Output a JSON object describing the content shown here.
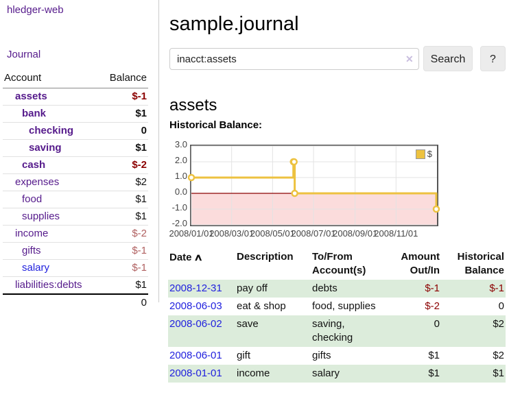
{
  "colors": {
    "link_purple": "#551a8b",
    "link_blue": "#2121de",
    "negative_strong": "#8b0000",
    "negative_muted": "#b06060",
    "stripe_green": "#dcecdb",
    "chart_line": "#edc240",
    "chart_negative_fill": "#fbdcdc",
    "chart_zero_line": "#8b0000",
    "chart_grid": "#e3e3e3"
  },
  "icons": {
    "sort_up": "∧",
    "clear": "✕"
  },
  "sidebar": {
    "brand": "hledger-web",
    "journal_link": "Journal",
    "accounts": {
      "header_account": "Account",
      "header_balance": "Balance",
      "rows": [
        {
          "name": "assets",
          "indent": 0,
          "bold": true,
          "balance": "$-1",
          "balance_class": "neg-strong"
        },
        {
          "name": "bank",
          "indent": 1,
          "bold": true,
          "balance": "$1",
          "balance_class": ""
        },
        {
          "name": "checking",
          "indent": 2,
          "bold": true,
          "balance": "0",
          "balance_class": ""
        },
        {
          "name": "saving",
          "indent": 2,
          "bold": true,
          "balance": "$1",
          "balance_class": ""
        },
        {
          "name": "cash",
          "indent": 1,
          "bold": true,
          "balance": "$-2",
          "balance_class": "neg-strong"
        },
        {
          "name": "expenses",
          "indent": 0,
          "bold": false,
          "balance": "$2",
          "balance_class": ""
        },
        {
          "name": "food",
          "indent": 1,
          "bold": false,
          "balance": "$1",
          "balance_class": ""
        },
        {
          "name": "supplies",
          "indent": 1,
          "bold": false,
          "balance": "$1",
          "balance_class": ""
        },
        {
          "name": "income",
          "indent": 0,
          "bold": false,
          "balance": "$-2",
          "balance_class": "neg-muted"
        },
        {
          "name": "gifts",
          "indent": 1,
          "bold": false,
          "balance": "$-1",
          "balance_class": "neg-muted"
        },
        {
          "name": "salary",
          "indent": 1,
          "bold": false,
          "blue": true,
          "balance": "$-1",
          "balance_class": "neg-muted"
        },
        {
          "name": "liabilities:debts",
          "indent": 0,
          "bold": false,
          "balance": "$1",
          "balance_class": ""
        }
      ],
      "total": "0"
    }
  },
  "main": {
    "title": "sample.journal",
    "search": {
      "value": "inacct:assets",
      "button_label": "Search",
      "help_label": "?"
    },
    "account_heading": "assets",
    "section_label": "Historical Balance:"
  },
  "register": {
    "headers": {
      "date": "Date",
      "description": "Description",
      "accounts": "To/From Account(s)",
      "amount": "Amount Out/In",
      "balance": "Historical Balance"
    },
    "rows": [
      {
        "date": "2008-12-31",
        "description": "pay off",
        "accounts": "debts",
        "amount": "$-1",
        "amount_negative": true,
        "balance": "$-1",
        "balance_negative": true
      },
      {
        "date": "2008-06-03",
        "description": "eat & shop",
        "accounts": "food, supplies",
        "amount": "$-2",
        "amount_negative": true,
        "balance": "0",
        "balance_negative": false
      },
      {
        "date": "2008-06-02",
        "description": "save",
        "accounts": "saving, checking",
        "amount": "0",
        "amount_negative": false,
        "balance": "$2",
        "balance_negative": false
      },
      {
        "date": "2008-06-01",
        "description": "gift",
        "accounts": "gifts",
        "amount": "$1",
        "amount_negative": false,
        "balance": "$2",
        "balance_negative": false
      },
      {
        "date": "2008-01-01",
        "description": "income",
        "accounts": "salary",
        "amount": "$1",
        "amount_negative": false,
        "balance": "$1",
        "balance_negative": false
      }
    ]
  },
  "chart_data": {
    "type": "line",
    "step": true,
    "title": "Historical Balance:",
    "x_domain": [
      "2008-01-01",
      "2009-01-01"
    ],
    "ylim": [
      -2,
      3
    ],
    "grid": true,
    "negative_region": true,
    "legend_position": "top-right",
    "y_ticks": [
      {
        "label": "3.0",
        "value": 3
      },
      {
        "label": "2.0",
        "value": 2
      },
      {
        "label": "1.0",
        "value": 1
      },
      {
        "label": "0.0",
        "value": 0
      },
      {
        "label": "-1.0",
        "value": -1
      },
      {
        "label": "-2.0",
        "value": -2
      }
    ],
    "x_ticks": [
      {
        "label": "2008/01/01",
        "date": "2008-01-01"
      },
      {
        "label": "2008/03/01",
        "date": "2008-03-01"
      },
      {
        "label": "2008/05/01",
        "date": "2008-05-01"
      },
      {
        "label": "2008/07/01",
        "date": "2008-07-01"
      },
      {
        "label": "2008/09/01",
        "date": "2008-09-01"
      },
      {
        "label": "2008/11/01",
        "date": "2008-11-01"
      }
    ],
    "series": [
      {
        "name": "$",
        "color": "#edc240",
        "points": [
          {
            "date": "2008-01-01",
            "value": 1
          },
          {
            "date": "2008-06-01",
            "value": 2
          },
          {
            "date": "2008-06-02",
            "value": 2
          },
          {
            "date": "2008-06-03",
            "value": 0
          },
          {
            "date": "2008-12-31",
            "value": -1
          }
        ]
      }
    ]
  }
}
